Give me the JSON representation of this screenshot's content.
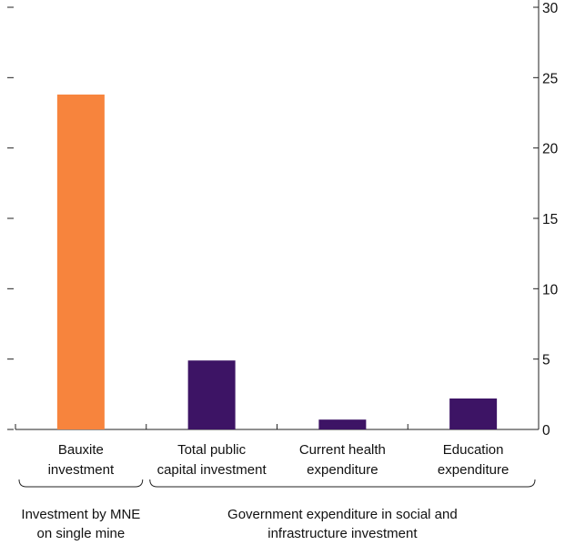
{
  "chart_data": {
    "type": "bar",
    "categories": [
      [
        "Bauxite",
        "investment"
      ],
      [
        "Total public",
        "capital investment"
      ],
      [
        "Current health",
        "expenditure"
      ],
      [
        "Education",
        "expenditure"
      ]
    ],
    "values": [
      23.8,
      4.9,
      0.7,
      2.2
    ],
    "bar_colors": [
      "#F7843D",
      "#3D1465",
      "#3D1465",
      "#3D1465"
    ],
    "ylim": [
      0,
      30
    ],
    "yticks": [
      0,
      5,
      10,
      15,
      20,
      25,
      30
    ],
    "y_axis_side": "right",
    "grid": false,
    "groups": [
      {
        "label": [
          "Investment by MNE",
          "on single mine"
        ],
        "start": 0,
        "end": 0
      },
      {
        "label": [
          "Government expenditure in social and",
          "infrastructure investment"
        ],
        "start": 1,
        "end": 3
      }
    ],
    "title": "",
    "xlabel": "",
    "ylabel": ""
  }
}
